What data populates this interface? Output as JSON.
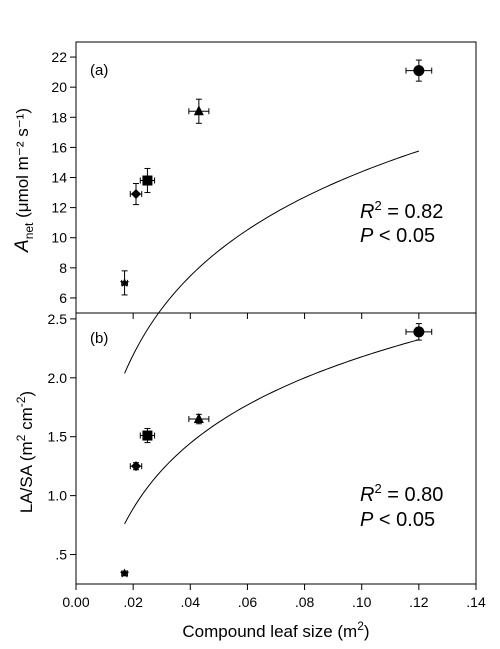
{
  "chart_data": [
    {
      "type": "scatter",
      "panel_label": "(a)",
      "ylabel": {
        "main": "A",
        "sub": "net",
        "units": " (μmol m⁻² s⁻¹)"
      },
      "xlim": [
        0.0,
        0.14
      ],
      "ylim": [
        5,
        23
      ],
      "yticks": [
        "6",
        "8",
        "10",
        "12",
        "14",
        "16",
        "18",
        "20",
        "22"
      ],
      "points": [
        {
          "marker": "star",
          "x": 0.017,
          "y": 7.0,
          "xerr": 0.001,
          "yerr": 0.8
        },
        {
          "marker": "diamond",
          "x": 0.021,
          "y": 12.9,
          "xerr": 0.002,
          "yerr": 0.7
        },
        {
          "marker": "square",
          "x": 0.025,
          "y": 13.8,
          "xerr": 0.0025,
          "yerr": 0.8
        },
        {
          "marker": "triangle",
          "x": 0.043,
          "y": 18.4,
          "xerr": 0.0035,
          "yerr": 0.8
        },
        {
          "marker": "circle",
          "x": 0.12,
          "y": 21.1,
          "xerr": 0.0045,
          "yerr": 0.7
        }
      ],
      "fit": {
        "type": "log",
        "a": 31.79,
        "b": 7.56,
        "x_range": [
          0.017,
          0.12
        ]
      },
      "stats": {
        "r2_label": "R",
        "r2_sup": "2",
        "r2_value": " = 0.82",
        "p_label": "P",
        "p_value": " < 0.05"
      }
    },
    {
      "type": "scatter",
      "panel_label": "(b)",
      "ylabel": {
        "main": "LA/SA (m",
        "sup1": "2",
        "mid": " cm",
        "sup2": "-2",
        "end": ")"
      },
      "xlabel": {
        "main": "Compound leaf size (m",
        "sup": "2",
        "end": ")"
      },
      "xlim": [
        0.0,
        0.14
      ],
      "xticks": [
        "0.00",
        ".02",
        ".04",
        ".06",
        ".08",
        ".10",
        ".12",
        ".14"
      ],
      "ylim": [
        0.25,
        2.55
      ],
      "yticks": [
        ".5",
        "1.0",
        "1.5",
        "2.0",
        "2.5"
      ],
      "points": [
        {
          "marker": "star",
          "x": 0.017,
          "y": 0.34,
          "xerr": 0.001,
          "yerr": 0.02
        },
        {
          "marker": "diamond",
          "x": 0.021,
          "y": 1.25,
          "xerr": 0.002,
          "yerr": 0.03
        },
        {
          "marker": "square",
          "x": 0.025,
          "y": 1.51,
          "xerr": 0.0025,
          "yerr": 0.06
        },
        {
          "marker": "triangle",
          "x": 0.043,
          "y": 1.65,
          "xerr": 0.0035,
          "yerr": 0.04
        },
        {
          "marker": "circle",
          "x": 0.12,
          "y": 2.39,
          "xerr": 0.0045,
          "yerr": 0.07
        }
      ],
      "fit": {
        "type": "log",
        "a": 4.02,
        "b": 0.8,
        "x_range": [
          0.017,
          0.12
        ]
      },
      "stats": {
        "r2_label": "R",
        "r2_sup": "2",
        "r2_value": " = 0.80",
        "p_label": "P",
        "p_value": " < 0.05"
      }
    }
  ]
}
